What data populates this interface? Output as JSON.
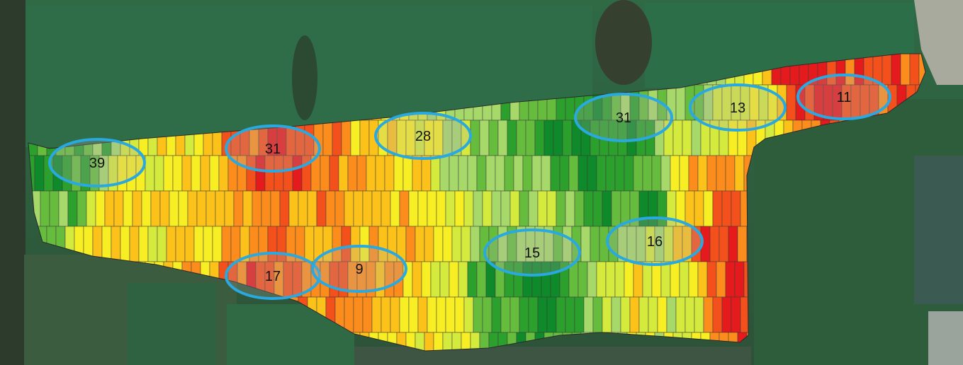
{
  "map": {
    "type": "field-yield-zones",
    "legend_visible": false,
    "ramp_colors": [
      "#e41a1c",
      "#f4501c",
      "#fc8d1c",
      "#fcc21a",
      "#f7ee24",
      "#d4ea3c",
      "#a6d96a",
      "#66bd3d",
      "#2ca02c",
      "#0f8a2a"
    ],
    "marker_color": "#29a9e0",
    "zones": [
      {
        "label": "39"
      },
      {
        "label": "31"
      },
      {
        "label": "28"
      },
      {
        "label": "31"
      },
      {
        "label": "13"
      },
      {
        "label": "11"
      },
      {
        "label": "17"
      },
      {
        "label": "9"
      },
      {
        "label": "15"
      },
      {
        "label": "16"
      }
    ]
  }
}
